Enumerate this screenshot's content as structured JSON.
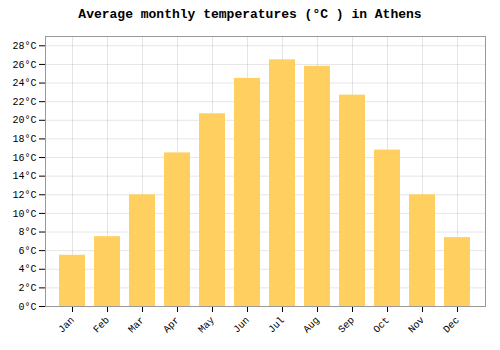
{
  "chart_data": {
    "type": "bar",
    "title": "Average monthly temperatures (°C ) in Athens",
    "categories": [
      "Jan",
      "Feb",
      "Mar",
      "Apr",
      "May",
      "Jun",
      "Jul",
      "Aug",
      "Sep",
      "Oct",
      "Nov",
      "Dec"
    ],
    "values": [
      5.5,
      7.5,
      12.0,
      16.5,
      20.7,
      24.5,
      26.5,
      25.8,
      22.7,
      16.8,
      12.0,
      7.4
    ],
    "color": "#FFD060",
    "ylim": [
      0,
      29
    ],
    "yticks": [
      {
        "value": 0,
        "label": "0°C"
      },
      {
        "value": 2,
        "label": "2°C"
      },
      {
        "value": 4,
        "label": "4°C"
      },
      {
        "value": 6,
        "label": "6°C"
      },
      {
        "value": 8,
        "label": "8°C"
      },
      {
        "value": 10,
        "label": "10°C"
      },
      {
        "value": 12,
        "label": "12°C"
      },
      {
        "value": 14,
        "label": "14°C"
      },
      {
        "value": 16,
        "label": "16°C"
      },
      {
        "value": 18,
        "label": "18°C"
      },
      {
        "value": 20,
        "label": "20°C"
      },
      {
        "value": 22,
        "label": "22°C"
      },
      {
        "value": 24,
        "label": "24°C"
      },
      {
        "value": 26,
        "label": "26°C"
      },
      {
        "value": 28,
        "label": "28°C"
      }
    ],
    "grid": true
  }
}
